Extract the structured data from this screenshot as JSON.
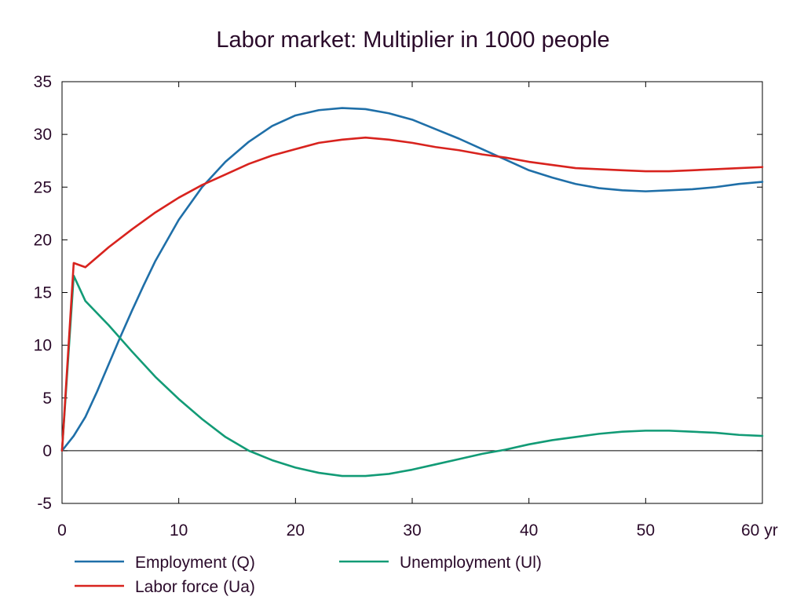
{
  "chart_data": {
    "type": "line",
    "title": "Labor market: Multiplier in 1000 people",
    "xlabel": "",
    "ylabel": "",
    "x_unit_label": "yr",
    "xlim": [
      0,
      60
    ],
    "ylim": [
      -5,
      35
    ],
    "x_ticks": [
      0,
      10,
      20,
      30,
      40,
      50,
      60
    ],
    "y_ticks": [
      -5,
      0,
      5,
      10,
      15,
      20,
      25,
      30,
      35
    ],
    "x_tick_labels": [
      "0",
      "10",
      "20",
      "30",
      "40",
      "50",
      "60 yr"
    ],
    "y_tick_labels": [
      "-5",
      "0",
      "5",
      "10",
      "15",
      "20",
      "25",
      "30",
      "35"
    ],
    "grid": false,
    "zero_line": true,
    "legend_position": "bottom",
    "series": [
      {
        "name": "Employment (Q)",
        "color": "#1f6fa8",
        "points": [
          [
            0,
            0
          ],
          [
            1,
            1.4
          ],
          [
            2,
            3.2
          ],
          [
            3,
            5.6
          ],
          [
            4,
            8.2
          ],
          [
            5,
            10.8
          ],
          [
            6,
            13.3
          ],
          [
            7,
            15.7
          ],
          [
            8,
            18.0
          ],
          [
            10,
            21.9
          ],
          [
            12,
            25.0
          ],
          [
            14,
            27.4
          ],
          [
            16,
            29.3
          ],
          [
            18,
            30.8
          ],
          [
            20,
            31.8
          ],
          [
            22,
            32.3
          ],
          [
            24,
            32.5
          ],
          [
            26,
            32.4
          ],
          [
            28,
            32.0
          ],
          [
            30,
            31.4
          ],
          [
            32,
            30.5
          ],
          [
            34,
            29.6
          ],
          [
            36,
            28.6
          ],
          [
            38,
            27.6
          ],
          [
            40,
            26.6
          ],
          [
            42,
            25.9
          ],
          [
            44,
            25.3
          ],
          [
            46,
            24.9
          ],
          [
            48,
            24.7
          ],
          [
            50,
            24.6
          ],
          [
            52,
            24.7
          ],
          [
            54,
            24.8
          ],
          [
            56,
            25.0
          ],
          [
            58,
            25.3
          ],
          [
            60,
            25.5
          ]
        ]
      },
      {
        "name": "Unemployment (Ul)",
        "color": "#129b76",
        "points": [
          [
            0,
            0
          ],
          [
            1,
            16.6
          ],
          [
            2,
            14.2
          ],
          [
            4,
            11.9
          ],
          [
            6,
            9.4
          ],
          [
            8,
            7.0
          ],
          [
            10,
            4.9
          ],
          [
            12,
            3.0
          ],
          [
            14,
            1.3
          ],
          [
            16,
            0.0
          ],
          [
            18,
            -0.9
          ],
          [
            20,
            -1.6
          ],
          [
            22,
            -2.1
          ],
          [
            24,
            -2.4
          ],
          [
            26,
            -2.4
          ],
          [
            28,
            -2.2
          ],
          [
            30,
            -1.8
          ],
          [
            32,
            -1.3
          ],
          [
            34,
            -0.8
          ],
          [
            36,
            -0.3
          ],
          [
            38,
            0.1
          ],
          [
            40,
            0.6
          ],
          [
            42,
            1.0
          ],
          [
            44,
            1.3
          ],
          [
            46,
            1.6
          ],
          [
            48,
            1.8
          ],
          [
            50,
            1.9
          ],
          [
            52,
            1.9
          ],
          [
            54,
            1.8
          ],
          [
            56,
            1.7
          ],
          [
            58,
            1.5
          ],
          [
            60,
            1.4
          ]
        ]
      },
      {
        "name": "Labor force (Ua)",
        "color": "#d8231e",
        "points": [
          [
            0,
            0
          ],
          [
            1,
            17.8
          ],
          [
            2,
            17.4
          ],
          [
            4,
            19.3
          ],
          [
            6,
            21.0
          ],
          [
            8,
            22.6
          ],
          [
            10,
            24.0
          ],
          [
            12,
            25.2
          ],
          [
            14,
            26.2
          ],
          [
            16,
            27.2
          ],
          [
            18,
            28.0
          ],
          [
            20,
            28.6
          ],
          [
            22,
            29.2
          ],
          [
            24,
            29.5
          ],
          [
            26,
            29.7
          ],
          [
            28,
            29.5
          ],
          [
            30,
            29.2
          ],
          [
            32,
            28.8
          ],
          [
            34,
            28.5
          ],
          [
            36,
            28.1
          ],
          [
            38,
            27.8
          ],
          [
            40,
            27.4
          ],
          [
            42,
            27.1
          ],
          [
            44,
            26.8
          ],
          [
            46,
            26.7
          ],
          [
            48,
            26.6
          ],
          [
            50,
            26.5
          ],
          [
            52,
            26.5
          ],
          [
            54,
            26.6
          ],
          [
            56,
            26.7
          ],
          [
            58,
            26.8
          ],
          [
            60,
            26.9
          ]
        ]
      }
    ]
  }
}
